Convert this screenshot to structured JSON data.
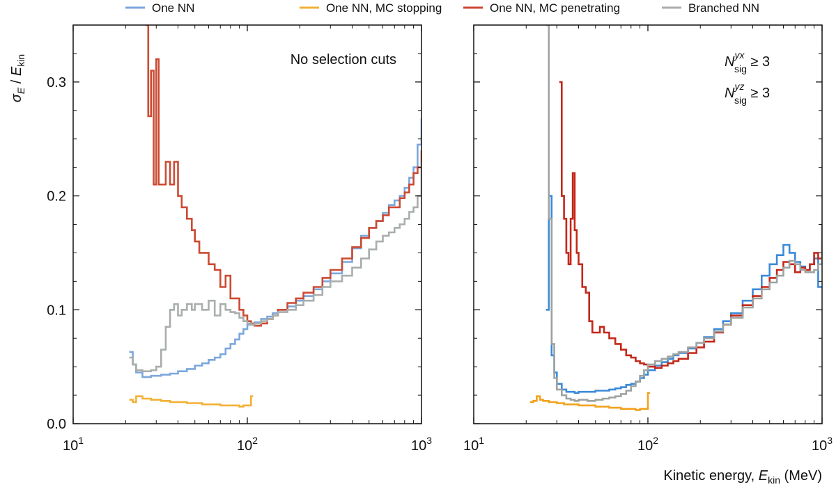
{
  "legend": [
    {
      "label": "One NN",
      "color": "#7ba7dd"
    },
    {
      "label": "One NN, MC stopping",
      "color": "#f2b134"
    },
    {
      "label": "One NN, MC penetrating",
      "color": "#cc4a33"
    },
    {
      "label": "Branched NN",
      "color": "#a8aeab"
    }
  ],
  "chart_data": [
    {
      "type": "line",
      "id": "left",
      "title": "",
      "annotation": "No selection cuts",
      "xlabel": "",
      "ylabel": "σ_E / E_kin",
      "ylabel_parts": {
        "sigma": "σ",
        "sub": "E",
        "slash": " / ",
        "e": "E",
        "esub": "kin"
      },
      "xscale": "log",
      "xlim": [
        10,
        1000
      ],
      "ylim": [
        0.0,
        0.35
      ],
      "x_ticks": [
        {
          "base": "10",
          "exp": "1"
        },
        {
          "base": "10",
          "exp": "2"
        },
        {
          "base": "10",
          "exp": "3"
        }
      ],
      "y_ticks": [
        "0.0",
        "0.1",
        "0.2",
        "0.3"
      ],
      "series": [
        {
          "name": "One NN",
          "color": "#7ba7dd",
          "x": [
            21,
            22,
            23,
            25,
            28,
            32,
            36,
            40,
            45,
            50,
            55,
            60,
            65,
            70,
            75,
            80,
            85,
            90,
            95,
            100,
            110,
            120,
            130,
            140,
            150,
            170,
            190,
            210,
            240,
            270,
            300,
            350,
            400,
            450,
            500,
            550,
            600,
            650,
            700,
            750,
            800,
            850,
            900,
            950,
            1000
          ],
          "y": [
            0.063,
            0.052,
            0.045,
            0.041,
            0.042,
            0.043,
            0.044,
            0.046,
            0.048,
            0.051,
            0.053,
            0.056,
            0.058,
            0.061,
            0.066,
            0.07,
            0.074,
            0.079,
            0.083,
            0.087,
            0.089,
            0.092,
            0.094,
            0.097,
            0.1,
            0.103,
            0.108,
            0.112,
            0.118,
            0.125,
            0.132,
            0.142,
            0.154,
            0.165,
            0.172,
            0.178,
            0.185,
            0.192,
            0.196,
            0.2,
            0.207,
            0.216,
            0.225,
            0.245,
            0.268
          ]
        },
        {
          "name": "One NN, MC stopping",
          "color": "#f2b134",
          "x": [
            21,
            22,
            23,
            25,
            28,
            32,
            36,
            40,
            45,
            50,
            55,
            60,
            65,
            70,
            75,
            80,
            85,
            90,
            95,
            100,
            105,
            108
          ],
          "y": [
            0.021,
            0.019,
            0.024,
            0.022,
            0.021,
            0.02,
            0.019,
            0.019,
            0.018,
            0.018,
            0.017,
            0.017,
            0.017,
            0.016,
            0.016,
            0.016,
            0.016,
            0.015,
            0.016,
            0.016,
            0.024,
            0.024
          ]
        },
        {
          "name": "One NN, MC penetrating",
          "color": "#cc4a33",
          "x": [
            26,
            27,
            28,
            29,
            30,
            31,
            32,
            34,
            36,
            38,
            40,
            42,
            45,
            48,
            50,
            53,
            56,
            60,
            65,
            70,
            75,
            80,
            85,
            90,
            95,
            100,
            105,
            110,
            120,
            130,
            140,
            150,
            170,
            190,
            210,
            240,
            270,
            300,
            350,
            400,
            450,
            500,
            550,
            600,
            650,
            700,
            750,
            800,
            850,
            900,
            950,
            1000
          ],
          "y": [
            0.35,
            0.27,
            0.31,
            0.21,
            0.32,
            0.21,
            0.21,
            0.23,
            0.21,
            0.23,
            0.2,
            0.19,
            0.18,
            0.17,
            0.16,
            0.15,
            0.15,
            0.14,
            0.135,
            0.12,
            0.13,
            0.11,
            0.11,
            0.1,
            0.095,
            0.09,
            0.088,
            0.086,
            0.088,
            0.092,
            0.095,
            0.1,
            0.106,
            0.11,
            0.115,
            0.12,
            0.128,
            0.135,
            0.145,
            0.155,
            0.163,
            0.172,
            0.178,
            0.183,
            0.19,
            0.19,
            0.198,
            0.203,
            0.21,
            0.22,
            0.225,
            0.24
          ]
        },
        {
          "name": "Branched NN",
          "color": "#a8aeab",
          "x": [
            21,
            22,
            23,
            25,
            28,
            30,
            32,
            34,
            36,
            38,
            40,
            42,
            45,
            48,
            50,
            55,
            60,
            65,
            70,
            75,
            80,
            85,
            90,
            95,
            100,
            105,
            110,
            120,
            130,
            140,
            150,
            170,
            190,
            210,
            240,
            270,
            300,
            350,
            400,
            450,
            500,
            550,
            600,
            650,
            700,
            750,
            800,
            850,
            900,
            950,
            1000
          ],
          "y": [
            0.058,
            0.052,
            0.047,
            0.046,
            0.047,
            0.05,
            0.065,
            0.085,
            0.1,
            0.105,
            0.095,
            0.1,
            0.105,
            0.1,
            0.105,
            0.1,
            0.108,
            0.095,
            0.105,
            0.1,
            0.098,
            0.097,
            0.093,
            0.09,
            0.088,
            0.087,
            0.088,
            0.09,
            0.092,
            0.095,
            0.098,
            0.1,
            0.104,
            0.108,
            0.113,
            0.12,
            0.125,
            0.13,
            0.137,
            0.145,
            0.153,
            0.16,
            0.165,
            0.168,
            0.172,
            0.175,
            0.18,
            0.186,
            0.19,
            0.2,
            0.23
          ]
        }
      ]
    },
    {
      "type": "line",
      "id": "right",
      "title": "",
      "annotation_lines": [
        {
          "n": "N",
          "sup": "yx",
          "sub": "sig",
          "rel": " ≥ 3"
        },
        {
          "n": "N",
          "sup": "yz",
          "sub": "sig",
          "rel": " ≥ 3"
        }
      ],
      "xlabel": "Kinetic energy, E_kin (MeV)",
      "xlabel_parts": {
        "pre": "Kinetic energy, ",
        "e": "E",
        "esub": "kin",
        "post": " (MeV)"
      },
      "ylabel": "",
      "xscale": "log",
      "xlim": [
        10,
        1000
      ],
      "ylim": [
        0.0,
        0.35
      ],
      "x_ticks": [
        {
          "base": "10",
          "exp": "1"
        },
        {
          "base": "10",
          "exp": "2"
        },
        {
          "base": "10",
          "exp": "3"
        }
      ],
      "series": [
        {
          "name": "One NN",
          "color": "#3b8ad9",
          "x": [
            26,
            27,
            28,
            29,
            30,
            32,
            34,
            36,
            38,
            40,
            45,
            50,
            55,
            60,
            65,
            70,
            75,
            80,
            85,
            90,
            95,
            100,
            110,
            120,
            130,
            140,
            150,
            170,
            190,
            210,
            240,
            270,
            300,
            350,
            400,
            450,
            500,
            550,
            600,
            650,
            700,
            750,
            800,
            850,
            900,
            950,
            1000
          ],
          "y": [
            0.1,
            0.2,
            0.06,
            0.045,
            0.035,
            0.03,
            0.028,
            0.028,
            0.027,
            0.028,
            0.028,
            0.029,
            0.029,
            0.03,
            0.031,
            0.032,
            0.034,
            0.035,
            0.037,
            0.04,
            0.043,
            0.047,
            0.051,
            0.054,
            0.057,
            0.06,
            0.062,
            0.066,
            0.071,
            0.076,
            0.083,
            0.09,
            0.097,
            0.108,
            0.118,
            0.13,
            0.14,
            0.148,
            0.157,
            0.15,
            0.142,
            0.138,
            0.135,
            0.14,
            0.145,
            0.12,
            0.12
          ]
        },
        {
          "name": "One NN, MC stopping",
          "color": "#f2a21f",
          "x": [
            21,
            22,
            23,
            24,
            25,
            27,
            30,
            33,
            36,
            40,
            45,
            50,
            55,
            60,
            65,
            70,
            75,
            80,
            85,
            90,
            95,
            100,
            103
          ],
          "y": [
            0.019,
            0.02,
            0.024,
            0.021,
            0.02,
            0.019,
            0.018,
            0.017,
            0.017,
            0.016,
            0.016,
            0.015,
            0.015,
            0.014,
            0.014,
            0.013,
            0.013,
            0.013,
            0.012,
            0.013,
            0.013,
            0.027,
            0.027
          ]
        },
        {
          "name": "One NN, MC penetrating",
          "color": "#c42719",
          "x": [
            31,
            32,
            33,
            34,
            35,
            36,
            37,
            38,
            39,
            40,
            42,
            44,
            46,
            48,
            50,
            53,
            56,
            60,
            65,
            70,
            75,
            80,
            85,
            90,
            95,
            100,
            110,
            120,
            130,
            140,
            150,
            170,
            190,
            210,
            240,
            270,
            300,
            350,
            400,
            450,
            500,
            550,
            600,
            650,
            700,
            750,
            800,
            850,
            900,
            950,
            1000
          ],
          "y": [
            0.3,
            0.2,
            0.18,
            0.15,
            0.14,
            0.18,
            0.22,
            0.17,
            0.15,
            0.14,
            0.12,
            0.115,
            0.09,
            0.08,
            0.08,
            0.085,
            0.08,
            0.075,
            0.07,
            0.065,
            0.06,
            0.058,
            0.055,
            0.053,
            0.052,
            0.05,
            0.049,
            0.051,
            0.053,
            0.055,
            0.057,
            0.062,
            0.067,
            0.072,
            0.08,
            0.087,
            0.095,
            0.104,
            0.112,
            0.12,
            0.128,
            0.135,
            0.142,
            0.14,
            0.133,
            0.137,
            0.135,
            0.14,
            0.15,
            0.145,
            0.16
          ]
        },
        {
          "name": "Branched NN",
          "color": "#9ea3a1",
          "x": [
            26,
            27,
            28,
            29,
            30,
            32,
            34,
            36,
            38,
            40,
            45,
            50,
            55,
            60,
            65,
            70,
            75,
            80,
            85,
            90,
            95,
            100,
            110,
            120,
            130,
            140,
            150,
            170,
            190,
            210,
            240,
            270,
            300,
            350,
            400,
            450,
            500,
            550,
            600,
            650,
            700,
            750,
            800,
            850,
            900,
            950,
            1000
          ],
          "y": [
            0.35,
            0.18,
            0.07,
            0.04,
            0.03,
            0.025,
            0.022,
            0.021,
            0.02,
            0.021,
            0.02,
            0.021,
            0.022,
            0.023,
            0.024,
            0.026,
            0.029,
            0.033,
            0.037,
            0.042,
            0.047,
            0.052,
            0.055,
            0.057,
            0.059,
            0.061,
            0.063,
            0.067,
            0.071,
            0.075,
            0.081,
            0.087,
            0.093,
            0.102,
            0.11,
            0.118,
            0.124,
            0.13,
            0.137,
            0.143,
            0.14,
            0.135,
            0.133,
            0.133,
            0.135,
            0.14,
            0.175
          ]
        }
      ]
    }
  ]
}
